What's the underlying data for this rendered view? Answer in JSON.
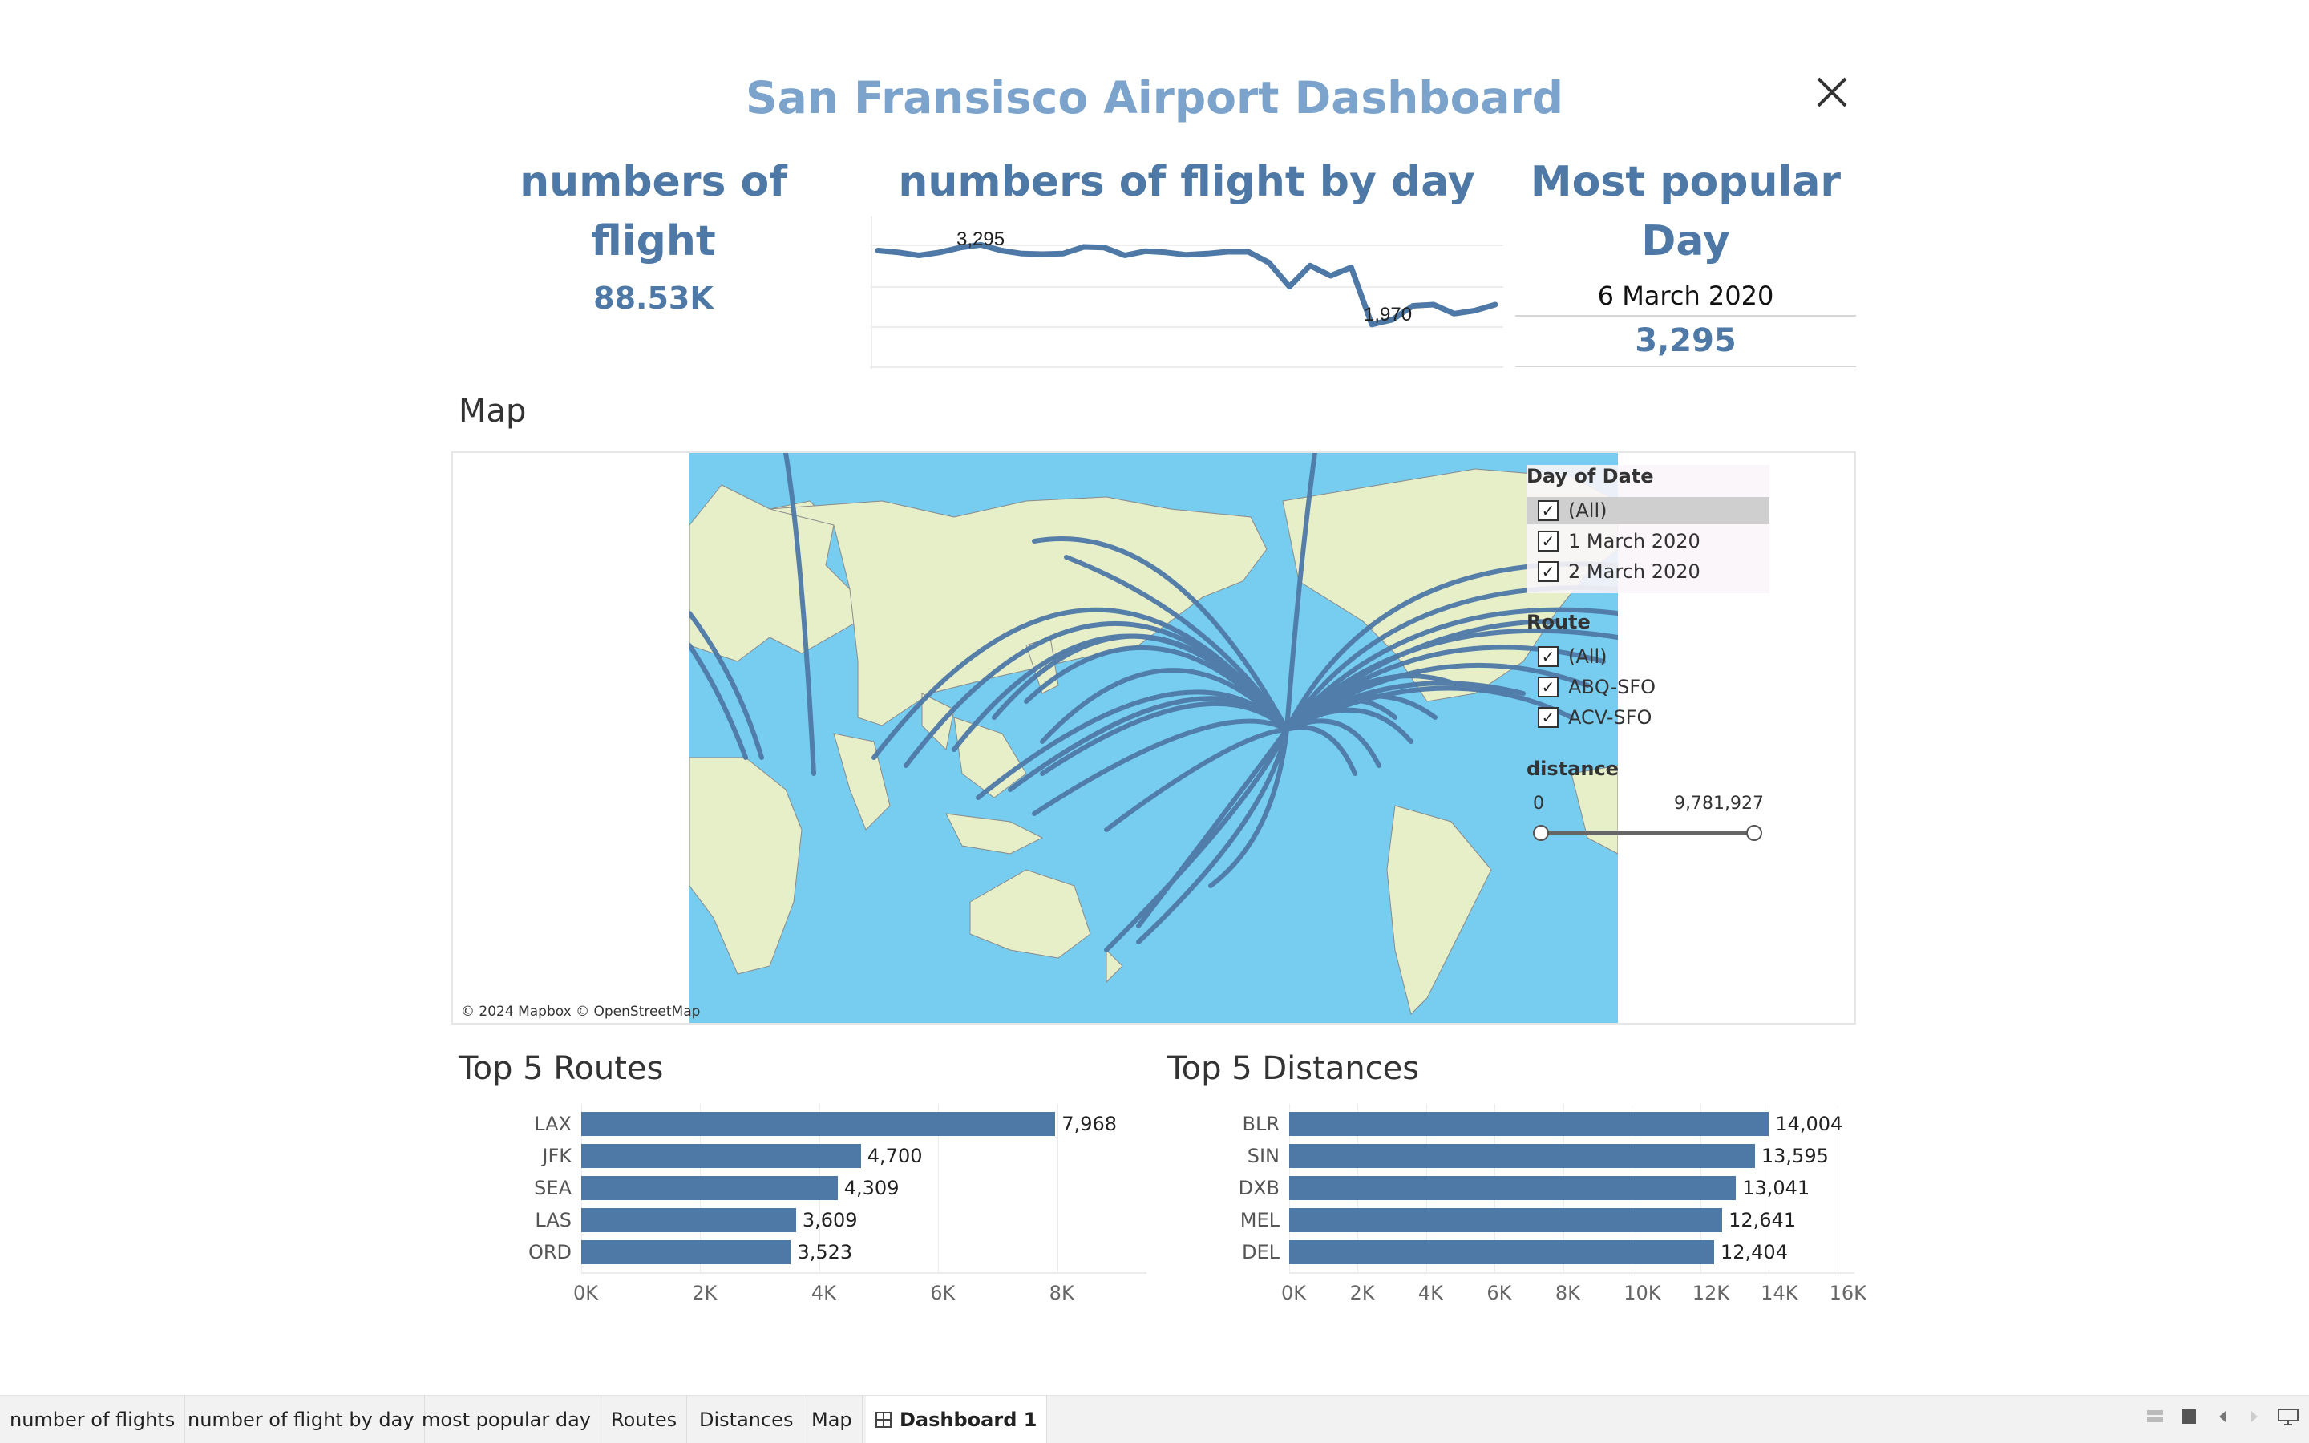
{
  "dashboard": {
    "title": "San Fransisco Airport Dashboard",
    "kpis": {
      "flights_title": "numbers of flight",
      "flights_value": "88.53K",
      "by_day_title": "numbers of flight by day",
      "popular_title_line1": "Most popular",
      "popular_title_line2": "Day",
      "popular_date": "6 March 2020",
      "popular_value": "3,295"
    },
    "sparkline": {
      "max_label": "3,295",
      "min_label": "1,970"
    }
  },
  "map": {
    "section_label": "Map",
    "credit": "© 2024 Mapbox © OpenStreetMap",
    "filters": {
      "day_title": "Day of Date",
      "day_items": [
        {
          "label": "(All)",
          "checked": true
        },
        {
          "label": "1 March 2020",
          "checked": true
        },
        {
          "label": "2 March 2020",
          "checked": true
        }
      ],
      "route_title": "Route",
      "route_items": [
        {
          "label": "(All)",
          "checked": true
        },
        {
          "label": "ABQ-SFO",
          "checked": true
        },
        {
          "label": "ACV-SFO",
          "checked": true
        }
      ],
      "distance_title": "distance",
      "distance_min": "0",
      "distance_max": "9,781,927"
    }
  },
  "chart_data": [
    {
      "type": "line",
      "title": "numbers of flight by day",
      "x": [
        1,
        2,
        3,
        4,
        5,
        6,
        7,
        8,
        9,
        10,
        11,
        12,
        13,
        14,
        15,
        16,
        17,
        18,
        19,
        20,
        21,
        22,
        23,
        24,
        25,
        26,
        27,
        28,
        29,
        30,
        31
      ],
      "values": [
        3200,
        3170,
        3120,
        3170,
        3250,
        3295,
        3200,
        3150,
        3140,
        3150,
        3260,
        3250,
        3120,
        3190,
        3170,
        3130,
        3150,
        3180,
        3180,
        3000,
        2600,
        2950,
        2780,
        2920,
        1970,
        2050,
        2280,
        2300,
        2150,
        2200,
        2300
      ],
      "annotations": [
        "3,295",
        "1,970"
      ],
      "ylim": [
        0,
        3500
      ]
    },
    {
      "type": "bar",
      "title": "Top 5 Routes",
      "categories": [
        "LAX",
        "JFK",
        "SEA",
        "LAS",
        "ORD"
      ],
      "values": [
        7968,
        4700,
        4309,
        3609,
        3523
      ],
      "value_labels": [
        "7,968",
        "4,700",
        "4,309",
        "3,609",
        "3,523"
      ],
      "ticks": [
        "0K",
        "2K",
        "4K",
        "6K",
        "8K"
      ],
      "xlim": [
        0,
        9500
      ]
    },
    {
      "type": "bar",
      "title": "Top 5 Distances",
      "categories": [
        "BLR",
        "SIN",
        "DXB",
        "MEL",
        "DEL"
      ],
      "values": [
        14004,
        13595,
        13041,
        12641,
        12404
      ],
      "value_labels": [
        "14,004",
        "13,595",
        "13,041",
        "12,641",
        "12,404"
      ],
      "ticks": [
        "0K",
        "2K",
        "4K",
        "6K",
        "8K",
        "10K",
        "12K",
        "14K",
        "16K"
      ],
      "xlim": [
        0,
        16500
      ]
    }
  ],
  "tabs": [
    {
      "label": "number of flights",
      "active": false
    },
    {
      "label": "number of flight by day",
      "active": false
    },
    {
      "label": "most popular day",
      "active": false
    },
    {
      "label": "Routes",
      "active": false
    },
    {
      "label": "Distances",
      "active": false
    },
    {
      "label": "Map",
      "active": false
    },
    {
      "label": "Dashboard 1",
      "active": true
    }
  ],
  "colors": {
    "accent": "#4e79a7",
    "title": "#7ba3cc",
    "ocean": "#76cdf0",
    "land": "#e7efc9"
  },
  "icons": [
    "close-icon",
    "dashboard-grid-icon",
    "checkbox-check-icon",
    "view-toggle-icon",
    "prev-arrow-icon",
    "next-arrow-icon",
    "presentation-icon"
  ]
}
